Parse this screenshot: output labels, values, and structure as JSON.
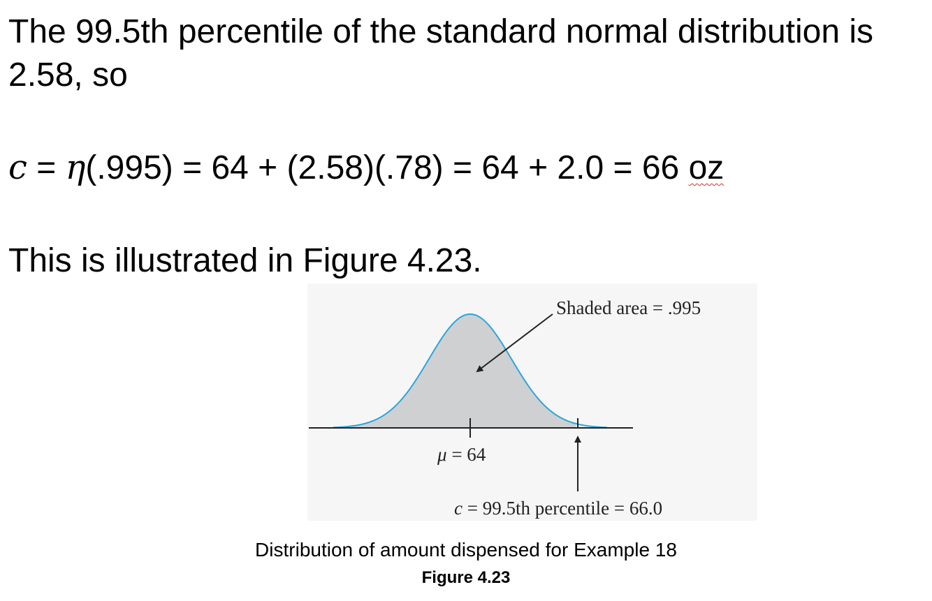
{
  "text": {
    "line1": "The 99.5th percentile of the standard normal distribution is",
    "line2": "2.58, so",
    "equation": {
      "var_c": "c",
      "eq1": " = ",
      "var_eta": "η",
      "rest": "(.995) = 64 + (2.58)(.78) = 64 + 2.0 = 66 ",
      "unit": "oz"
    },
    "line3": "This is illustrated in Figure 4.23."
  },
  "figure": {
    "shaded_label": "Shaded area = .995",
    "mu_symbol": "μ",
    "mu_value": " = 64",
    "c_symbol": "c",
    "c_value": " = 99.5th percentile = 66.0",
    "caption": "Distribution of amount dispensed for Example 18",
    "label": "Figure 4.23",
    "colors": {
      "curve": "#2aa6dd",
      "shade": "#cfd0d2",
      "axis": "#222222",
      "panel": "#f6f6f6"
    },
    "distribution": {
      "mean": 64,
      "sd": 0.78,
      "c": 66.0,
      "shaded_area": 0.995
    }
  }
}
